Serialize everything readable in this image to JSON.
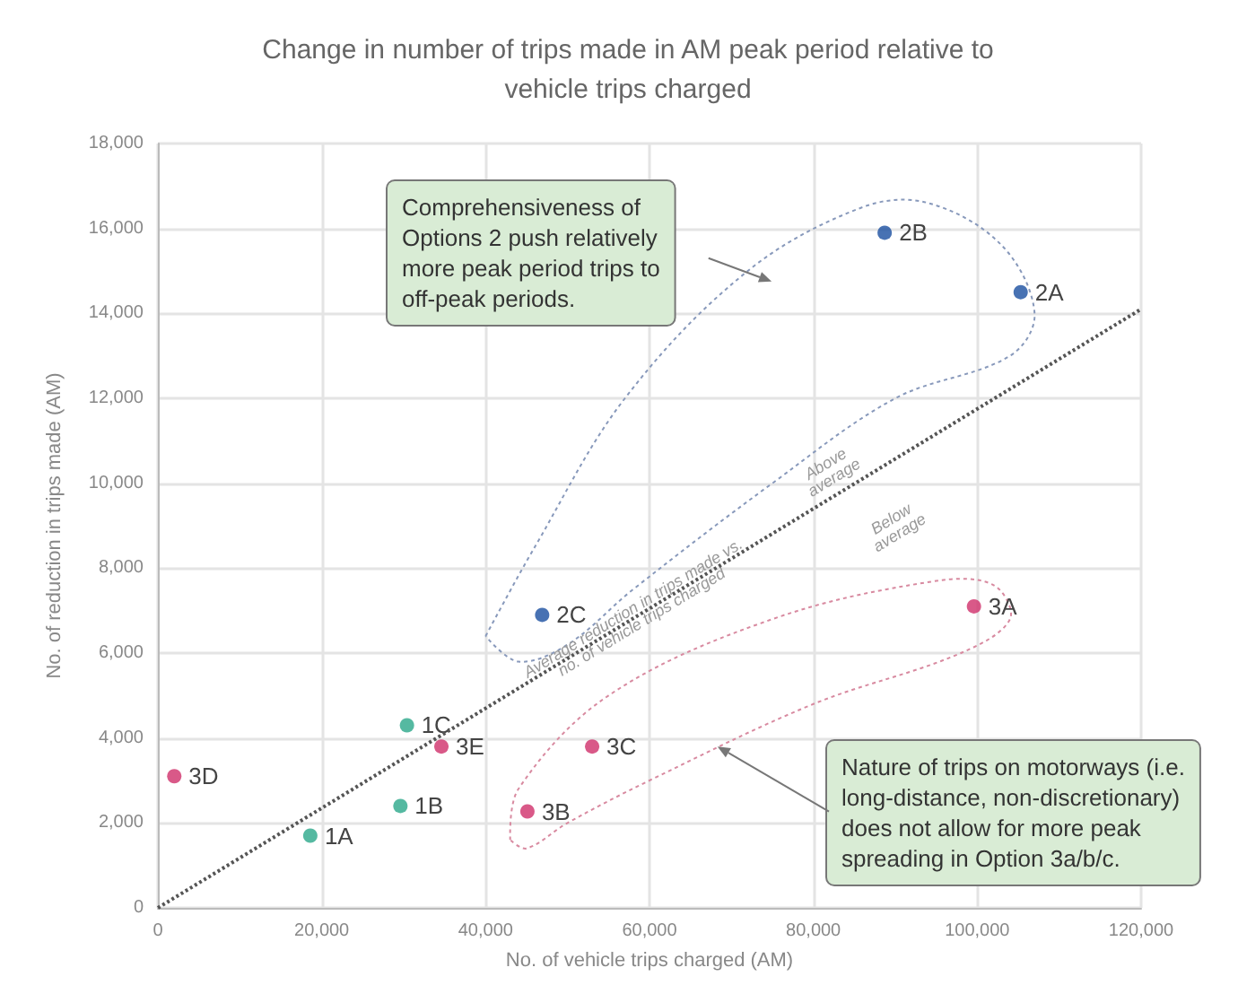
{
  "chart_data": {
    "type": "scatter",
    "title": "Change in number of trips made in AM peak period relative to\nvehicle trips charged",
    "xlabel": "No. of vehicle trips charged (AM)",
    "ylabel": "No. of reduction in trips made (AM)",
    "xlim": [
      0,
      120000
    ],
    "xticks": [
      0,
      {
        "value": 20000,
        "label": "20,000"
      },
      {
        "value": 40000,
        "label": "40,000"
      },
      {
        "value": 60000,
        "label": "60,000"
      },
      {
        "value": 80000,
        "label": "80,000"
      },
      {
        "value": 100000,
        "label": "100,000"
      },
      {
        "value": 120000,
        "label": "120,000"
      }
    ],
    "ylim": [
      0,
      18000
    ],
    "yticks": [
      0,
      {
        "value": 2000,
        "label": "2,000"
      },
      {
        "value": 4000,
        "label": "4,000"
      },
      {
        "value": 6000,
        "label": "6,000"
      },
      {
        "value": 8000,
        "label": "8,000"
      },
      {
        "value": 10000,
        "label": "10,000"
      },
      {
        "value": 12000,
        "label": "12,000"
      },
      {
        "value": 14000,
        "label": "14,000"
      },
      {
        "value": 16000,
        "label": "16,000"
      },
      {
        "value": 18000,
        "label": "18,000"
      }
    ],
    "grid": true,
    "marker": "circle",
    "series": [
      {
        "color": "#2aa88a",
        "x": [
          18600,
          29600,
          30400
        ],
        "values": [
          1700,
          2400,
          4300
        ]
      },
      {
        "color": "#1a4fa0",
        "x": [
          105300,
          88700,
          46900
        ],
        "values": [
          14500,
          15900,
          6900
        ]
      },
      {
        "color": "#d0306a",
        "x": [
          99600,
          45100,
          53000,
          2000,
          34600
        ],
        "values": [
          7100,
          2270,
          3800,
          3100,
          3800
        ]
      },
      {
        "type": "line",
        "color": "#555555",
        "line_style": "dotted",
        "marker": "none",
        "x": [
          0,
          120000
        ],
        "values": [
          0,
          14100
        ]
      }
    ],
    "annotations": [
      "Comprehensiveness of\nOptions 2 push relatively\nmore peak period trips to\noff-peak periods.",
      "Nature of trips on motorways (i.e.\nlong-distance, non-discretionary)\ndoes not allow for more peak\nspreading in Option 3a/b/c.",
      {
        "text": "1A",
        "x": 18600,
        "y": 1700
      },
      {
        "text": "1B",
        "x": 29600,
        "y": 2400
      },
      {
        "text": "1C",
        "x": 30400,
        "y": 4300
      },
      {
        "text": "2A",
        "x": 105300,
        "y": 14500
      },
      {
        "text": "2B",
        "x": 88700,
        "y": 15900
      },
      {
        "text": "2C",
        "x": 46900,
        "y": 6900
      },
      {
        "text": "3A",
        "x": 99600,
        "y": 7100
      },
      {
        "text": "3B",
        "x": 45100,
        "y": 2270
      },
      {
        "text": "3C",
        "x": 53000,
        "y": 3800
      },
      {
        "text": "3D",
        "x": 2000,
        "y": 3100
      },
      {
        "text": "3E",
        "x": 34600,
        "y": 3800
      },
      "Average reduction in trips made vs.\nno. of vehicle trips charged",
      "Above\naverage",
      "Below\naverage"
    ]
  }
}
